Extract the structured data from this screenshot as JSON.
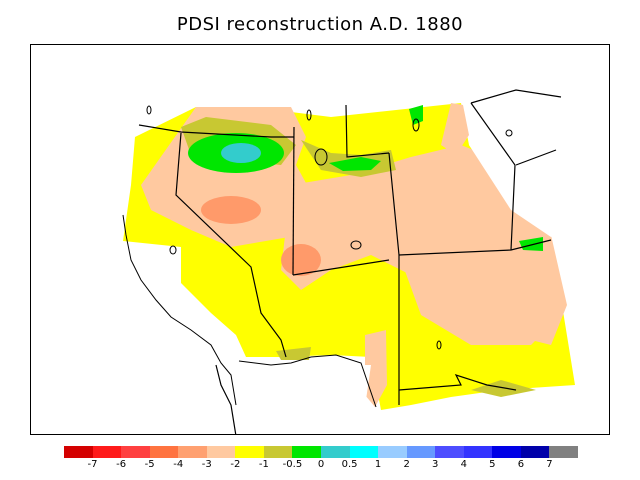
{
  "title": "PDSI reconstruction A.D. 1880",
  "legend": {
    "colors": [
      "#d40000",
      "#ff1a1a",
      "#ff4040",
      "#ff7340",
      "#ffa070",
      "#ffc9a0",
      "#ffff00",
      "#c8c832",
      "#00e600",
      "#33cccc",
      "#00ffff",
      "#99ccff",
      "#6699ff",
      "#4d4dff",
      "#3333ff",
      "#0000e6",
      "#0000aa",
      "#808080"
    ],
    "ticks": [
      "-7",
      "-6",
      "-5",
      "-4",
      "-3",
      "-2",
      "-1",
      "-0.5",
      "0",
      "0.5",
      "1",
      "2",
      "3",
      "4",
      "5",
      "6",
      "7"
    ]
  },
  "chart_data": {
    "type": "heatmap",
    "title": "PDSI reconstruction A.D. 1880",
    "colorbar_ticks": [
      -7,
      -6,
      -5,
      -4,
      -3,
      -2,
      -1,
      -0.5,
      0,
      0.5,
      1,
      2,
      3,
      4,
      5,
      6,
      7
    ],
    "colors": {
      "wet": "#00e600",
      "very_wet": "#33cccc",
      "near_normal": "#ffff00",
      "slightly_dry": "#c8c832",
      "dry": "#ffc9a0",
      "very_dry": "#ff9a6a",
      "no_data": "#ffffff"
    }
  }
}
